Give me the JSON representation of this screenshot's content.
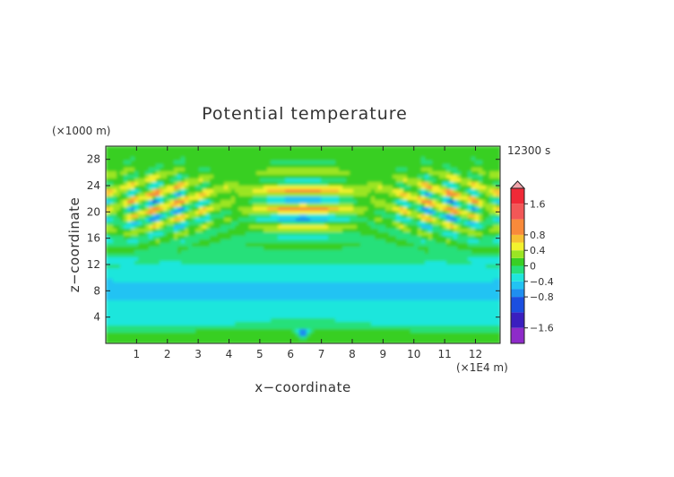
{
  "chart_data": {
    "type": "heatmap",
    "title": "Potential temperature",
    "xlabel": "x−coordinate",
    "ylabel": "z−coordinate",
    "x_unit": "(×1E4 m)",
    "y_unit": "(×1000 m)",
    "time_label": "12300 s",
    "xlim": [
      0,
      12.8
    ],
    "ylim": [
      0,
      30
    ],
    "x_ticks": [
      {
        "value": 1,
        "label": "1"
      },
      {
        "value": 2,
        "label": "2"
      },
      {
        "value": 3,
        "label": "3"
      },
      {
        "value": 4,
        "label": "4"
      },
      {
        "value": 5,
        "label": "5"
      },
      {
        "value": 6,
        "label": "6"
      },
      {
        "value": 7,
        "label": "7"
      },
      {
        "value": 8,
        "label": "8"
      },
      {
        "value": 9,
        "label": "9"
      },
      {
        "value": 10,
        "label": "10"
      },
      {
        "value": 11,
        "label": "11"
      },
      {
        "value": 12,
        "label": "12"
      }
    ],
    "y_ticks": [
      {
        "value": 4,
        "label": "4"
      },
      {
        "value": 8,
        "label": "8"
      },
      {
        "value": 12,
        "label": "12"
      },
      {
        "value": 16,
        "label": "16"
      },
      {
        "value": 20,
        "label": "20"
      },
      {
        "value": 24,
        "label": "24"
      },
      {
        "value": 28,
        "label": "28"
      }
    ],
    "colorbar": {
      "min": -2.0,
      "max": 2.0,
      "levels": [
        {
          "value": 1.6,
          "label": "1.6"
        },
        {
          "value": 0.8,
          "label": "0.8"
        },
        {
          "value": 0.4,
          "label": "0.4"
        },
        {
          "value": 0,
          "label": "0"
        },
        {
          "value": -0.4,
          "label": "−0.4"
        },
        {
          "value": -0.8,
          "label": "−0.8"
        },
        {
          "value": -1.6,
          "label": "−1.6"
        }
      ],
      "bands": [
        {
          "from": -2.0,
          "to": -1.6,
          "color": "#8e2bc9"
        },
        {
          "from": -1.6,
          "to": -1.2,
          "color": "#3a1fbf"
        },
        {
          "from": -1.2,
          "to": -0.8,
          "color": "#1b4fe0"
        },
        {
          "from": -0.8,
          "to": -0.6,
          "color": "#1f8ff0"
        },
        {
          "from": -0.6,
          "to": -0.4,
          "color": "#22c3f3"
        },
        {
          "from": -0.4,
          "to": -0.2,
          "color": "#1fe6dc"
        },
        {
          "from": -0.2,
          "to": 0.0,
          "color": "#27e07a"
        },
        {
          "from": 0.0,
          "to": 0.2,
          "color": "#39cf24"
        },
        {
          "from": 0.2,
          "to": 0.4,
          "color": "#9be523"
        },
        {
          "from": 0.4,
          "to": 0.6,
          "color": "#f3f22e"
        },
        {
          "from": 0.6,
          "to": 0.8,
          "color": "#f7c032"
        },
        {
          "from": 0.8,
          "to": 1.2,
          "color": "#f98a3a"
        },
        {
          "from": 1.2,
          "to": 1.6,
          "color": "#f25757"
        },
        {
          "from": 1.6,
          "to": 2.0,
          "color": "#f02a37"
        }
      ],
      "overflow_color": "#f2a7ad"
    }
  }
}
